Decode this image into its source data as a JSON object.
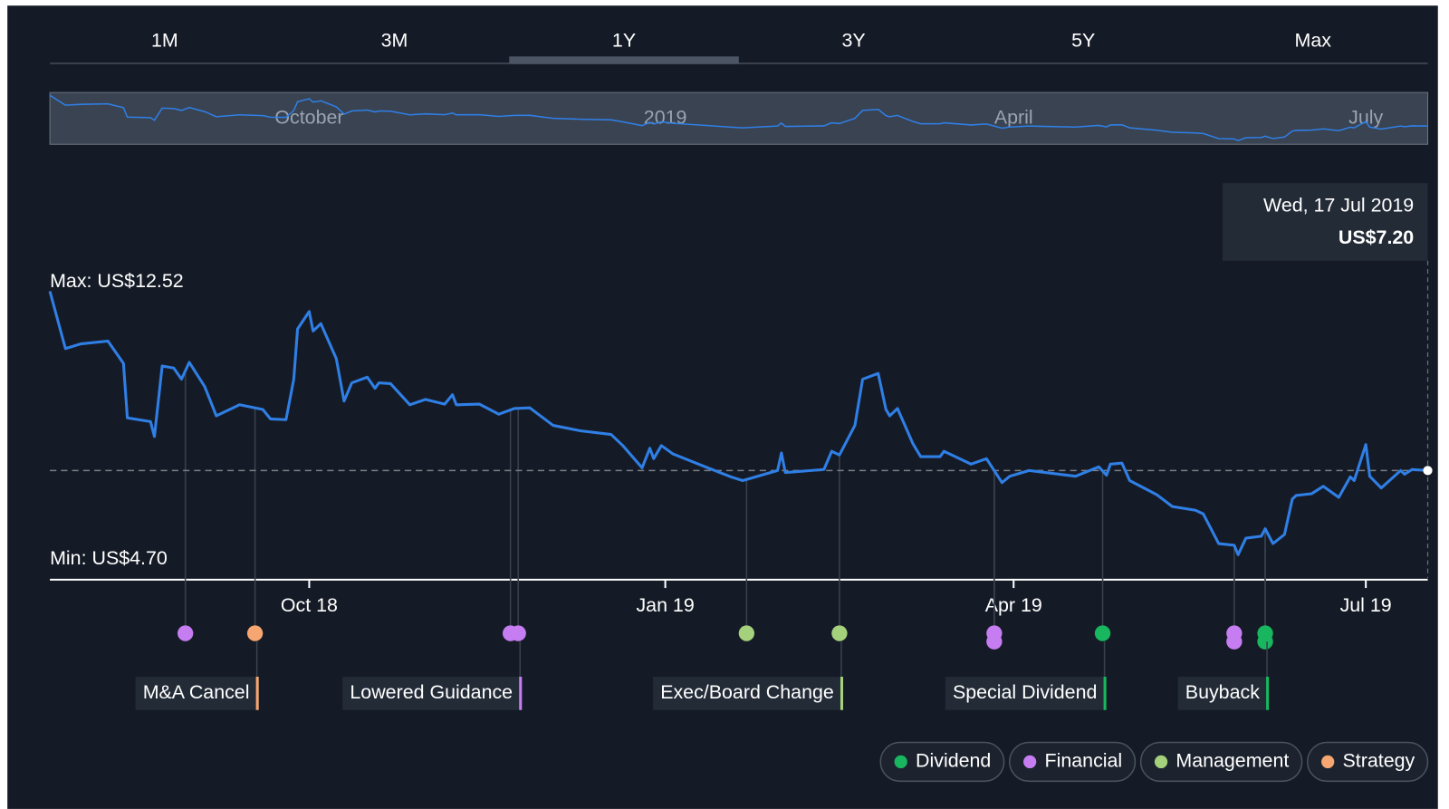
{
  "tabs": {
    "items": [
      "1M",
      "3M",
      "1Y",
      "3Y",
      "5Y",
      "Max"
    ],
    "active": 2
  },
  "chart_data": {
    "type": "line",
    "x": [
      "2018-07-26",
      "2018-07-30",
      "2018-08-03",
      "2018-08-10",
      "2018-08-14",
      "2018-08-15",
      "2018-08-21",
      "2018-08-22",
      "2018-08-24",
      "2018-08-27",
      "2018-08-29",
      "2018-08-31",
      "2018-09-04",
      "2018-09-07",
      "2018-09-13",
      "2018-09-19",
      "2018-09-21",
      "2018-09-25",
      "2018-09-27",
      "2018-09-28",
      "2018-10-01",
      "2018-10-02",
      "2018-10-04",
      "2018-10-08",
      "2018-10-10",
      "2018-10-12",
      "2018-10-16",
      "2018-10-18",
      "2018-10-19",
      "2018-10-22",
      "2018-10-27",
      "2018-10-31",
      "2018-11-05",
      "2018-11-07",
      "2018-11-08",
      "2018-11-14",
      "2018-11-19",
      "2018-11-23",
      "2018-11-27",
      "2018-12-03",
      "2018-12-10",
      "2018-12-18",
      "2018-12-21",
      "2018-12-26",
      "2018-12-28",
      "2018-12-29",
      "2018-12-31",
      "2019-01-03",
      "2019-01-12",
      "2019-01-18",
      "2019-01-21",
      "2019-01-30",
      "2019-01-31",
      "2019-02-01",
      "2019-02-11",
      "2019-02-13",
      "2019-02-15",
      "2019-02-19",
      "2019-02-21",
      "2019-02-25",
      "2019-02-27",
      "2019-02-28",
      "2019-03-02",
      "2019-03-06",
      "2019-03-08",
      "2019-03-13",
      "2019-03-14",
      "2019-03-21",
      "2019-03-25",
      "2019-03-29",
      "2019-03-31",
      "2019-04-05",
      "2019-04-17",
      "2019-04-23",
      "2019-04-25",
      "2019-04-26",
      "2019-04-29",
      "2019-05-01",
      "2019-05-08",
      "2019-05-12",
      "2019-05-18",
      "2019-05-20",
      "2019-05-24",
      "2019-05-28",
      "2019-05-29",
      "2019-05-31",
      "2019-06-04",
      "2019-06-05",
      "2019-06-07",
      "2019-06-10",
      "2019-06-12",
      "2019-06-13",
      "2019-06-17",
      "2019-06-20",
      "2019-06-24",
      "2019-06-27",
      "2019-06-28",
      "2019-07-01",
      "2019-07-02",
      "2019-07-05",
      "2019-07-10",
      "2019-07-11",
      "2019-07-13",
      "2019-07-17"
    ],
    "series": [
      {
        "name": "Share price",
        "color": "#2f7fe6",
        "values": [
          12.52,
          10.82,
          10.96,
          11.04,
          10.38,
          8.76,
          8.65,
          8.21,
          10.3,
          10.24,
          9.91,
          10.41,
          9.69,
          8.82,
          9.15,
          9.01,
          8.73,
          8.71,
          9.91,
          11.4,
          11.92,
          11.34,
          11.56,
          10.52,
          9.26,
          9.8,
          9.97,
          9.64,
          9.8,
          9.78,
          9.15,
          9.31,
          9.17,
          9.45,
          9.15,
          9.17,
          8.87,
          9.04,
          9.06,
          8.54,
          8.38,
          8.27,
          7.94,
          7.28,
          7.86,
          7.55,
          7.94,
          7.69,
          7.28,
          7.01,
          6.9,
          7.2,
          7.72,
          7.14,
          7.23,
          7.77,
          7.66,
          8.54,
          9.91,
          10.08,
          9.01,
          8.82,
          9.04,
          7.99,
          7.61,
          7.61,
          7.77,
          7.39,
          7.55,
          6.84,
          7.03,
          7.2,
          7.03,
          7.31,
          7.06,
          7.39,
          7.42,
          6.9,
          6.48,
          6.13,
          6.02,
          5.91,
          5.03,
          4.98,
          4.7,
          5.19,
          5.25,
          5.47,
          5.03,
          5.3,
          6.35,
          6.46,
          6.51,
          6.73,
          6.4,
          7.01,
          6.9,
          7.97,
          7.03,
          6.68,
          7.2,
          7.09,
          7.23,
          7.2
        ]
      }
    ],
    "xlim": [
      "2018-07-26",
      "2019-07-17"
    ],
    "xticks": [
      {
        "value": "2018-10-01",
        "label": "Oct 18"
      },
      {
        "value": "2019-01-01",
        "label": "Jan 19"
      },
      {
        "value": "2019-04-01",
        "label": "Apr 19"
      },
      {
        "value": "2019-07-01",
        "label": "Jul 19"
      }
    ],
    "ylim": [
      4.7,
      12.52
    ],
    "max": {
      "value": 12.52,
      "label": "Max: US$12.52"
    },
    "min": {
      "value": 4.7,
      "label": "Min: US$4.70"
    },
    "navigator_labels": [
      "October",
      "2019",
      "April",
      "July"
    ]
  },
  "tooltip": {
    "date": "Wed, 17 Jul 2019",
    "value": 7.2,
    "label": "US$7.20"
  },
  "legend": [
    {
      "name": "Dividend",
      "color": "#18b75f"
    },
    {
      "name": "Financial",
      "color": "#c77df2"
    },
    {
      "name": "Management",
      "color": "#a5d17d"
    },
    {
      "name": "Strategy",
      "color": "#f6a670"
    }
  ],
  "events": [
    {
      "date": "2018-08-30",
      "category": 1
    },
    {
      "date": "2018-09-17",
      "category": 3
    },
    {
      "date": "2018-11-22",
      "category": 1
    },
    {
      "date": "2018-11-24",
      "category": 1
    },
    {
      "date": "2019-01-22",
      "category": 2
    },
    {
      "date": "2019-02-15",
      "category": 2
    },
    {
      "date": "2019-03-27",
      "category": 1
    },
    {
      "date": "2019-03-27",
      "category": 1
    },
    {
      "date": "2019-04-24",
      "category": 0
    },
    {
      "date": "2019-05-28",
      "category": 1
    },
    {
      "date": "2019-05-28",
      "category": 1
    },
    {
      "date": "2019-06-05",
      "category": 0
    },
    {
      "date": "2019-06-05",
      "category": 0
    }
  ],
  "event_labels": [
    {
      "text": "M&A Cancel",
      "event": 1
    },
    {
      "text": "Lowered Guidance",
      "event": 3
    },
    {
      "text": "Exec/Board Change",
      "event": 5
    },
    {
      "text": "Special Dividend",
      "event": 8
    },
    {
      "text": "Buyback",
      "event": 11
    }
  ]
}
